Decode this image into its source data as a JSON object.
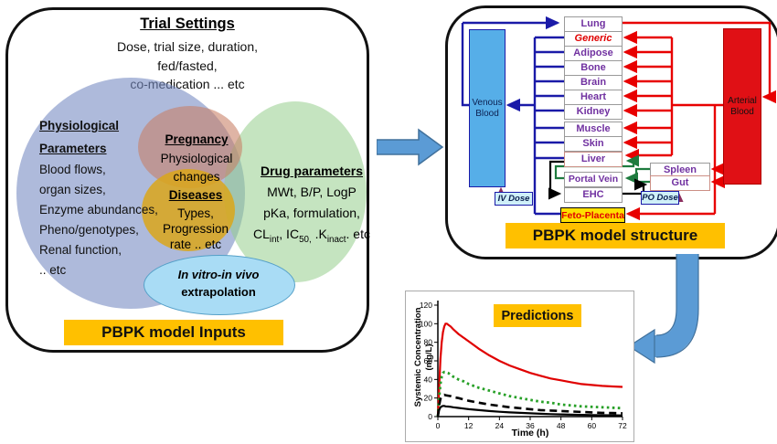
{
  "left_panel": {
    "title": "Trial Settings",
    "subtitle_lines": [
      "Dose, trial size, duration,",
      "fed/fasted,",
      "co-medication  ... etc"
    ],
    "physiological": {
      "header_lines": [
        "Physiological",
        "Parameters"
      ],
      "lines": [
        "Blood flows,",
        "organ sizes,",
        "Enzyme abundances,",
        "Pheno/genotypes,",
        "Renal function,",
        ".. etc"
      ]
    },
    "pregnancy": {
      "header": "Pregnancy",
      "lines": [
        "Physiological",
        "changes"
      ]
    },
    "diseases": {
      "header": "Diseases",
      "lines": [
        "Types,",
        "Progression",
        "rate .. etc"
      ]
    },
    "drug": {
      "header": "Drug parameters",
      "line1": "MWt, B/P, LogP",
      "line2": "pKa, formulation,",
      "line3_rich": [
        {
          "t": "CL"
        },
        {
          "t": "int",
          "sub": true
        },
        {
          "t": ", IC"
        },
        {
          "t": "50,",
          "sub": true
        },
        {
          "t": " .K"
        },
        {
          "t": "inact",
          "sub": true
        },
        {
          "t": ". etc"
        }
      ]
    },
    "ivive_lines": [
      "In vitro-in vivo",
      "extrapolation"
    ],
    "footer": "PBPK model Inputs"
  },
  "right_panel": {
    "venous_lines": [
      "Venous",
      "Blood"
    ],
    "arterial_lines": [
      "Arterial",
      "Blood"
    ],
    "boxes": {
      "lung": "Lung",
      "generic": "Generic",
      "adipose": "Adipose",
      "bone": "Bone",
      "brain": "Brain",
      "heart": "Heart",
      "kidney": "Kidney",
      "muscle": "Muscle",
      "skin": "Skin",
      "liver": "Liver",
      "portal_vein": "Portal Vein",
      "ehc": "EHC",
      "spleen": "Spleen",
      "gut": "Gut",
      "feto": "Feto-Placenta"
    },
    "iv_dose": "IV Dose",
    "po_dose": "PO Dose",
    "footer": "PBPK model structure"
  },
  "chart_data": {
    "type": "line",
    "title": "Predictions",
    "xlabel": "Time (h)",
    "ylabel": "Systemic Concentration (mg/L)",
    "ylabel_lines": [
      "Systemic Concentration",
      "(mg/L)"
    ],
    "xlim": [
      0,
      72
    ],
    "ylim": [
      0,
      120
    ],
    "xticks": [
      0,
      12,
      24,
      36,
      48,
      60,
      72
    ],
    "yticks": [
      0,
      20,
      40,
      60,
      80,
      100,
      120
    ],
    "grid": false,
    "legend": "none",
    "series": [
      {
        "name": "red-solid-high",
        "color": "#E00000",
        "dash": "",
        "width": 2.2,
        "points": [
          [
            0,
            0
          ],
          [
            0.5,
            30
          ],
          [
            1,
            62
          ],
          [
            1.5,
            80
          ],
          [
            2,
            91
          ],
          [
            2.5,
            97
          ],
          [
            3,
            100
          ],
          [
            3.5,
            100
          ],
          [
            4,
            99
          ],
          [
            5,
            97
          ],
          [
            6,
            94
          ],
          [
            8,
            89
          ],
          [
            10,
            85
          ],
          [
            12,
            81
          ],
          [
            16,
            73
          ],
          [
            20,
            66
          ],
          [
            24,
            60
          ],
          [
            28,
            55
          ],
          [
            32,
            51
          ],
          [
            36,
            47
          ],
          [
            40,
            44
          ],
          [
            44,
            41
          ],
          [
            48,
            39
          ],
          [
            52,
            37
          ],
          [
            56,
            35
          ],
          [
            60,
            34
          ],
          [
            64,
            33
          ],
          [
            68,
            32.5
          ],
          [
            72,
            32
          ]
        ]
      },
      {
        "name": "green-dotted-mid",
        "color": "#27A027",
        "dash": "2.6 3.4",
        "width": 2.8,
        "points": [
          [
            0,
            0
          ],
          [
            0.5,
            20
          ],
          [
            1,
            35
          ],
          [
            1.5,
            43
          ],
          [
            2,
            47
          ],
          [
            2.5,
            48
          ],
          [
            3,
            48
          ],
          [
            4,
            47
          ],
          [
            5,
            45
          ],
          [
            6,
            43
          ],
          [
            8,
            40
          ],
          [
            10,
            38
          ],
          [
            12,
            35
          ],
          [
            16,
            31
          ],
          [
            20,
            28
          ],
          [
            24,
            25
          ],
          [
            28,
            22
          ],
          [
            32,
            20
          ],
          [
            36,
            18
          ],
          [
            40,
            16
          ],
          [
            44,
            15
          ],
          [
            48,
            13
          ],
          [
            52,
            12
          ],
          [
            56,
            11
          ],
          [
            60,
            10.5
          ],
          [
            64,
            10
          ],
          [
            68,
            9.5
          ],
          [
            72,
            9
          ]
        ]
      },
      {
        "name": "black-dashed-low",
        "color": "#000000",
        "dash": "8 5",
        "width": 2.6,
        "points": [
          [
            0,
            0
          ],
          [
            0.5,
            12
          ],
          [
            1,
            19
          ],
          [
            1.5,
            22
          ],
          [
            2,
            23
          ],
          [
            2.5,
            23.5
          ],
          [
            3,
            23
          ],
          [
            4,
            22.5
          ],
          [
            5,
            22
          ],
          [
            6,
            21
          ],
          [
            8,
            20
          ],
          [
            10,
            18.5
          ],
          [
            12,
            17
          ],
          [
            16,
            15
          ],
          [
            20,
            13
          ],
          [
            24,
            11.5
          ],
          [
            28,
            10
          ],
          [
            32,
            9
          ],
          [
            36,
            8
          ],
          [
            40,
            7
          ],
          [
            44,
            6.5
          ],
          [
            48,
            6
          ],
          [
            52,
            5.5
          ],
          [
            56,
            5
          ],
          [
            60,
            4.5
          ],
          [
            64,
            4
          ],
          [
            68,
            3.8
          ],
          [
            72,
            3.5
          ]
        ]
      },
      {
        "name": "black-solid-lowest",
        "color": "#000000",
        "dash": "",
        "width": 2.2,
        "points": [
          [
            0,
            0
          ],
          [
            0.5,
            7
          ],
          [
            1,
            10
          ],
          [
            1.5,
            11
          ],
          [
            2,
            11.5
          ],
          [
            2.5,
            11.5
          ],
          [
            3,
            11
          ],
          [
            4,
            10.8
          ],
          [
            5,
            10.5
          ],
          [
            6,
            10
          ],
          [
            8,
            9.3
          ],
          [
            10,
            8.7
          ],
          [
            12,
            8
          ],
          [
            16,
            7
          ],
          [
            20,
            6
          ],
          [
            24,
            5.2
          ],
          [
            28,
            4.5
          ],
          [
            32,
            4
          ],
          [
            36,
            3.5
          ],
          [
            40,
            3
          ],
          [
            44,
            2.7
          ],
          [
            48,
            2.4
          ],
          [
            52,
            2.1
          ],
          [
            56,
            1.9
          ],
          [
            60,
            1.7
          ],
          [
            64,
            1.5
          ],
          [
            68,
            1.4
          ],
          [
            72,
            1.3
          ]
        ]
      }
    ]
  },
  "colors": {
    "accent_orange": "#FFC000",
    "venous_blue": "#56AEE8",
    "arterial_red": "#E01015",
    "flow_blue": "#1A1AA8",
    "flow_red": "#E80000",
    "flow_green": "#1E7B3E",
    "dose_maroon": "#8B2E5E",
    "organ_text_purple": "#7030A0",
    "block_arrow_blue": "#5B9BD5"
  }
}
